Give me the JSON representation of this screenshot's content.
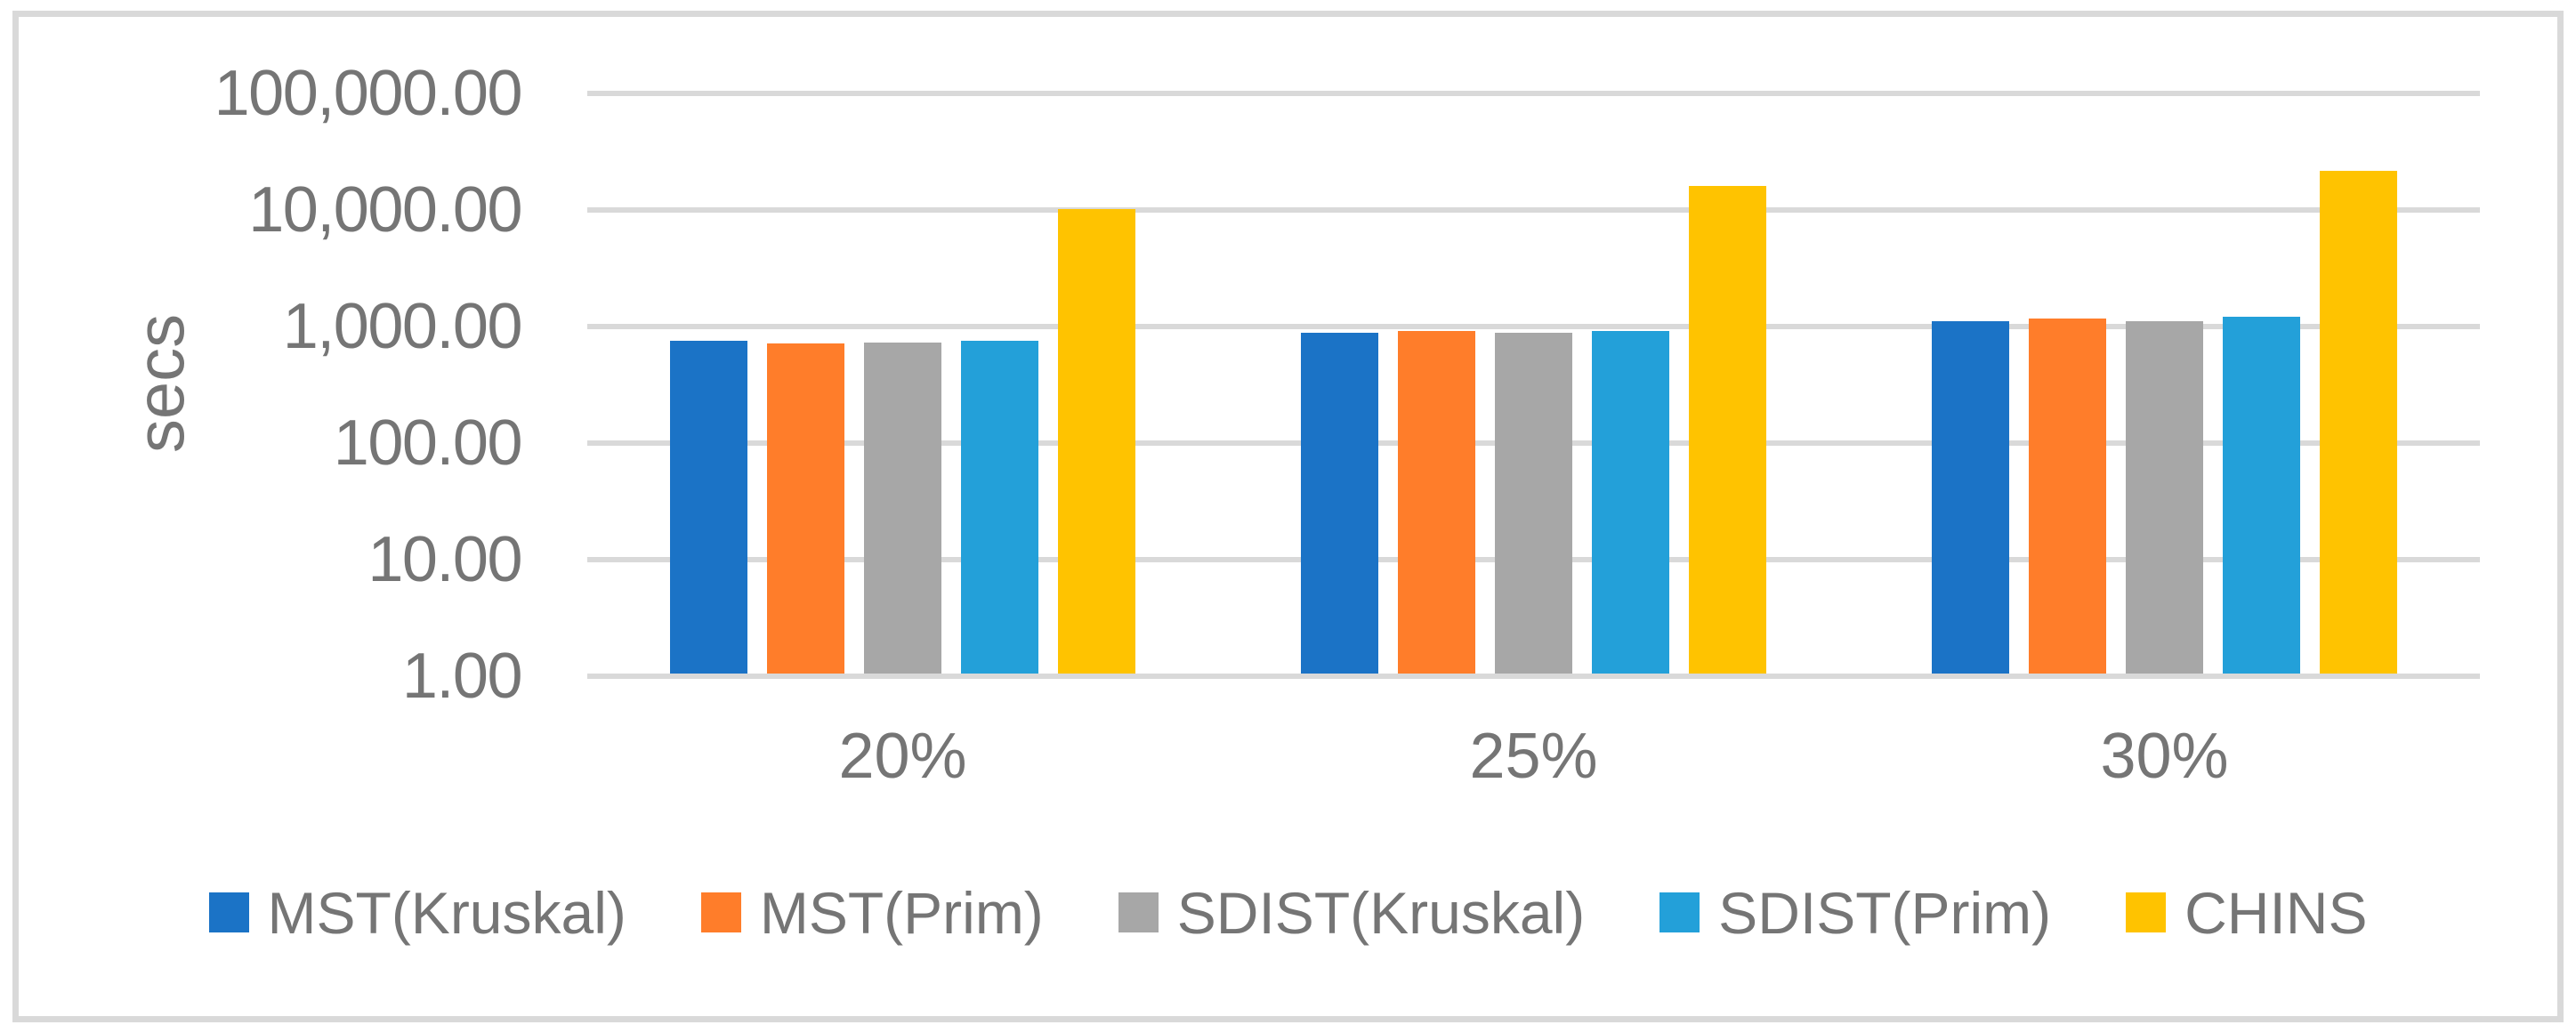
{
  "chart": {
    "y_axis_title": "secs",
    "y_tick_labels": [
      "100,000.00",
      "10,000.00",
      "1,000.00",
      "100.00",
      "10.00",
      "1.00"
    ],
    "x_category_labels": [
      "20%",
      "25%",
      "30%"
    ]
  },
  "chart_data": {
    "type": "bar",
    "y_scale": "log10",
    "title": "",
    "xlabel": "",
    "ylabel": "secs",
    "ylim": [
      1,
      100000
    ],
    "grid": true,
    "legend_position": "bottom",
    "categories": [
      "20%",
      "25%",
      "30%"
    ],
    "series": [
      {
        "name": "MST(Kruskal)",
        "color": "#1B73C6",
        "values": [
          760,
          890,
          1120
        ]
      },
      {
        "name": "MST(Prim)",
        "color": "#FF7D2A",
        "values": [
          710,
          910,
          1170
        ]
      },
      {
        "name": "SDIST(Kruskal)",
        "color": "#A7A7A7",
        "values": [
          730,
          890,
          1120
        ]
      },
      {
        "name": "SDIST(Prim)",
        "color": "#23A0D9",
        "values": [
          760,
          910,
          1220
        ]
      },
      {
        "name": "CHINS",
        "color": "#FFC300",
        "values": [
          10200,
          16000,
          21500
        ]
      }
    ]
  },
  "style": {
    "gridline_color": "#D9D9D9",
    "frame_border_color": "#D9D9D9",
    "text_color": "#757575"
  }
}
